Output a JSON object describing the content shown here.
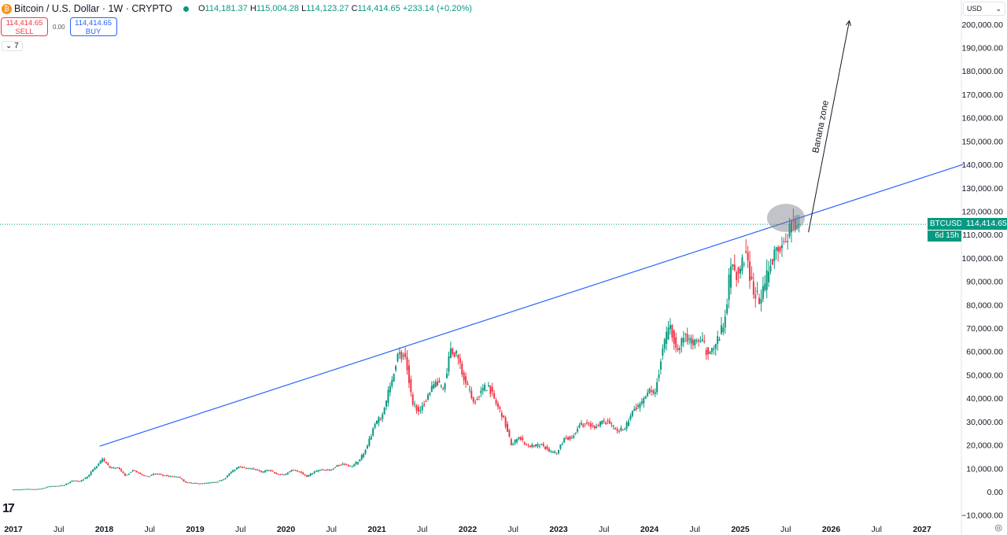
{
  "header": {
    "symbol_title": "Bitcoin / U.S. Dollar · 1W · CRYPTO",
    "open": "114,181.37",
    "high": "115,004.28",
    "low": "114,123.27",
    "close": "114,414.65",
    "change": "+233.14 (+0.20%)",
    "o": "O",
    "h": "H",
    "l": "L",
    "c": "C"
  },
  "trade": {
    "sell_price": "114,414.65",
    "sell_label": "SELL",
    "spread": "0.00",
    "buy_price": "114,414.65",
    "buy_label": "BUY"
  },
  "indicators_toggle": "7",
  "currency": "USD",
  "price_badge": {
    "symbol": "BTCUSD",
    "price": "114,414.65",
    "countdown": "6d 15h"
  },
  "annotation": "Banana zone",
  "colors": {
    "up": "#089981",
    "down": "#f23645",
    "trendline": "#2962ff"
  },
  "chart_data": {
    "type": "candlestick",
    "title": "Bitcoin / U.S. Dollar · 1W · CRYPTO",
    "ylim": [
      -10000,
      205000
    ],
    "y_ticks": [
      -10000,
      0,
      10000,
      20000,
      30000,
      40000,
      50000,
      60000,
      70000,
      80000,
      90000,
      100000,
      110000,
      120000,
      130000,
      140000,
      150000,
      160000,
      170000,
      180000,
      190000,
      200000
    ],
    "y_tick_labels": [
      "−10,000.00",
      "0.00",
      "10,000.00",
      "20,000.00",
      "30,000.00",
      "40,000.00",
      "50,000.00",
      "60,000.00",
      "70,000.00",
      "80,000.00",
      "90,000.00",
      "100,000.00",
      "110,000.00",
      "120,000.00",
      "130,000.00",
      "140,000.00",
      "150,000.00",
      "160,000.00",
      "170,000.00",
      "180,000.00",
      "190,000.00",
      "200,000.00"
    ],
    "x_ticks": [
      {
        "t": 2017.0,
        "label": "2017"
      },
      {
        "t": 2017.5,
        "label": "Jul"
      },
      {
        "t": 2018.0,
        "label": "2018"
      },
      {
        "t": 2018.5,
        "label": "Jul"
      },
      {
        "t": 2019.0,
        "label": "2019"
      },
      {
        "t": 2019.5,
        "label": "Jul"
      },
      {
        "t": 2020.0,
        "label": "2020"
      },
      {
        "t": 2020.5,
        "label": "Jul"
      },
      {
        "t": 2021.0,
        "label": "2021"
      },
      {
        "t": 2021.5,
        "label": "Jul"
      },
      {
        "t": 2022.0,
        "label": "2022"
      },
      {
        "t": 2022.5,
        "label": "Jul"
      },
      {
        "t": 2023.0,
        "label": "2023"
      },
      {
        "t": 2023.5,
        "label": "Jul"
      },
      {
        "t": 2024.0,
        "label": "2024"
      },
      {
        "t": 2024.5,
        "label": "Jul"
      },
      {
        "t": 2025.0,
        "label": "2025"
      },
      {
        "t": 2025.5,
        "label": "Jul"
      },
      {
        "t": 2026.0,
        "label": "2026"
      },
      {
        "t": 2026.5,
        "label": "Jul"
      },
      {
        "t": 2027.0,
        "label": "2027"
      }
    ],
    "start": 2017.0,
    "monthly_closes": [
      970,
      1190,
      1080,
      1350,
      2300,
      2480,
      2870,
      4730,
      4340,
      6470,
      10200,
      14000,
      10200,
      10300,
      6900,
      9200,
      7500,
      6400,
      7700,
      7000,
      6600,
      6300,
      4000,
      3700,
      3450,
      3800,
      4100,
      5300,
      8500,
      10800,
      10100,
      9600,
      8300,
      9200,
      7550,
      7200,
      9350,
      8600,
      6400,
      8600,
      9450,
      9140,
      11350,
      11650,
      10780,
      13800,
      19700,
      29000,
      33100,
      45200,
      58800,
      57700,
      37300,
      35000,
      41500,
      47100,
      43800,
      61300,
      57000,
      46300,
      38500,
      43200,
      45500,
      37700,
      31800,
      19900,
      23300,
      20000,
      19400,
      20500,
      17200,
      16500,
      23100,
      23100,
      28500,
      29200,
      27200,
      30500,
      29200,
      26000,
      27000,
      34600,
      37700,
      42300,
      42600,
      61200,
      71300,
      60600,
      67500,
      62700,
      64600,
      58900,
      63300,
      70200,
      96400,
      93400,
      102400,
      84300,
      82500,
      94200,
      104600,
      107100,
      115700,
      114414.65
    ],
    "trendline": {
      "from": {
        "t": 2017.95,
        "price": 19500
      },
      "to": {
        "t": 2027.45,
        "price": 140000
      }
    },
    "arrow": {
      "from": {
        "t": 2025.75,
        "price": 111000
      },
      "to": {
        "t": 2026.2,
        "price": 201500
      }
    },
    "current_price": 114414.65
  }
}
